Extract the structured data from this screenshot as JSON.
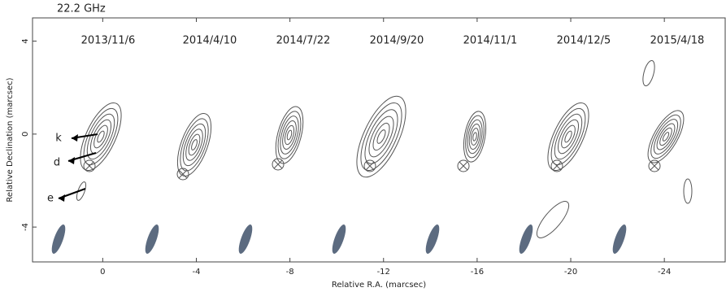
{
  "chart_data": {
    "type": "contour-map",
    "frequency_label": "22.2 GHz",
    "epochs": [
      "2013/11/6",
      "2014/4/10",
      "2014/7/22",
      "2014/9/20",
      "2014/11/1",
      "2014/12/5",
      "2015/4/18"
    ],
    "component_labels": [
      "k",
      "d",
      "e"
    ],
    "x_label": "Relative R.A. (marcsec)",
    "y_label": "Relative Declination (marcsec)",
    "xlim": [
      3,
      -26.6
    ],
    "xticks": [
      0,
      -4,
      -8,
      -12,
      -16,
      -20,
      -24
    ],
    "ylim": [
      -5.5,
      5
    ],
    "yticks": [
      4,
      0,
      -4
    ]
  }
}
